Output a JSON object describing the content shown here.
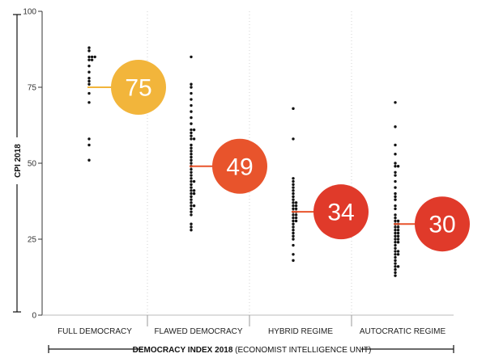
{
  "chart_data": {
    "type": "scatter",
    "ylabel": "CPI 2018",
    "xlabel_bold": "DEMOCRACY INDEX 2018",
    "xlabel_rest": " (ECONOMIST INTELLIGENCE UNIT)",
    "ylim": [
      0,
      100
    ],
    "yticks": [
      "0",
      "25",
      "50",
      "75",
      "100"
    ],
    "grid": false,
    "categories": [
      "FULL DEMOCRACY",
      "FLAWED DEMOCRACY",
      "HYBRID REGIME",
      "AUTOCRATIC REGIME"
    ],
    "averages": [
      "75",
      "49",
      "34",
      "30"
    ],
    "average_values": [
      75,
      49,
      34,
      30
    ],
    "colors": {
      "full_democracy": "#f2b53b",
      "flawed_democracy": "#e8542c",
      "hybrid_regime": "#e03a2a",
      "autocratic_regime": "#e03a2a",
      "full_line": "#f2b53b",
      "other_line": "#e8542c",
      "dots": "#111111"
    },
    "series": [
      {
        "values": [
          88,
          87,
          85,
          85,
          85,
          84,
          84,
          82,
          80,
          78,
          77,
          76,
          73,
          70,
          58,
          56,
          51
        ]
      },
      {
        "values": [
          85,
          76,
          75,
          73,
          71,
          69,
          67,
          65,
          63,
          61,
          61,
          60,
          59,
          58,
          58,
          56,
          55,
          54,
          53,
          52,
          51,
          50,
          49,
          48,
          47,
          46,
          45,
          44,
          44,
          43,
          42,
          41,
          41,
          40,
          40,
          39,
          38,
          37,
          36,
          36,
          35,
          34,
          33,
          30,
          29,
          28
        ]
      },
      {
        "values": [
          68,
          58,
          45,
          44,
          43,
          42,
          41,
          40,
          39,
          38,
          37,
          37,
          36,
          36,
          35,
          35,
          34,
          34,
          33,
          33,
          32,
          32,
          31,
          31,
          30,
          29,
          28,
          27,
          26,
          25,
          23,
          20,
          18
        ]
      },
      {
        "values": [
          70,
          62,
          56,
          53,
          50,
          49,
          49,
          47,
          46,
          44,
          42,
          40,
          39,
          38,
          36,
          35,
          33,
          32,
          31,
          31,
          30,
          30,
          29,
          29,
          28,
          28,
          27,
          27,
          26,
          26,
          25,
          25,
          24,
          24,
          23,
          22,
          21,
          21,
          20,
          20,
          19,
          18,
          17,
          16,
          16,
          15,
          14,
          13
        ]
      }
    ]
  }
}
